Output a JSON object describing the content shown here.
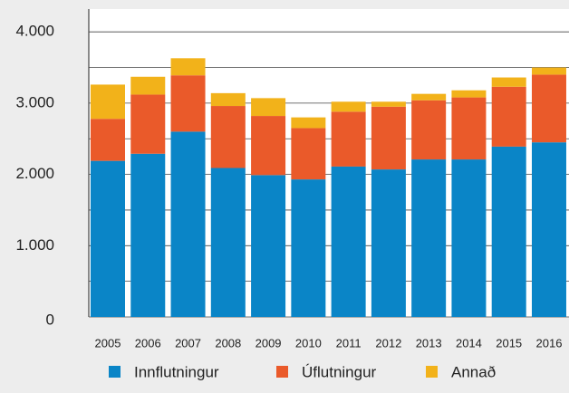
{
  "chart_data": {
    "type": "stacked_bar",
    "categories": [
      "2005",
      "2006",
      "2007",
      "2008",
      "2009",
      "2010",
      "2011",
      "2012",
      "2013",
      "2014",
      "2015",
      "2016"
    ],
    "series": [
      {
        "name": "Innflutningur",
        "color": "#0a85c7",
        "values": [
          2190,
          2290,
          2600,
          2090,
          1990,
          1930,
          2110,
          2070,
          2210,
          2210,
          2390,
          2450
        ]
      },
      {
        "name": "Úflutningur",
        "color": "#ea5a2a",
        "values": [
          590,
          830,
          790,
          870,
          830,
          720,
          770,
          880,
          830,
          870,
          840,
          950
        ]
      },
      {
        "name": "Annað",
        "color": "#f2b21a",
        "values": [
          480,
          250,
          240,
          180,
          250,
          150,
          140,
          70,
          90,
          100,
          130,
          100
        ]
      }
    ],
    "ylim": [
      0,
      4320
    ],
    "yticks": [
      0,
      {
        "value": 1000,
        "label": "1.000"
      },
      {
        "value": 2000,
        "label": "2.000"
      },
      {
        "value": 3000,
        "label": "3.000"
      },
      {
        "value": 4000,
        "label": "4.000"
      }
    ],
    "yminor": [
      500,
      1500,
      2500,
      3500
    ],
    "grid": true
  }
}
